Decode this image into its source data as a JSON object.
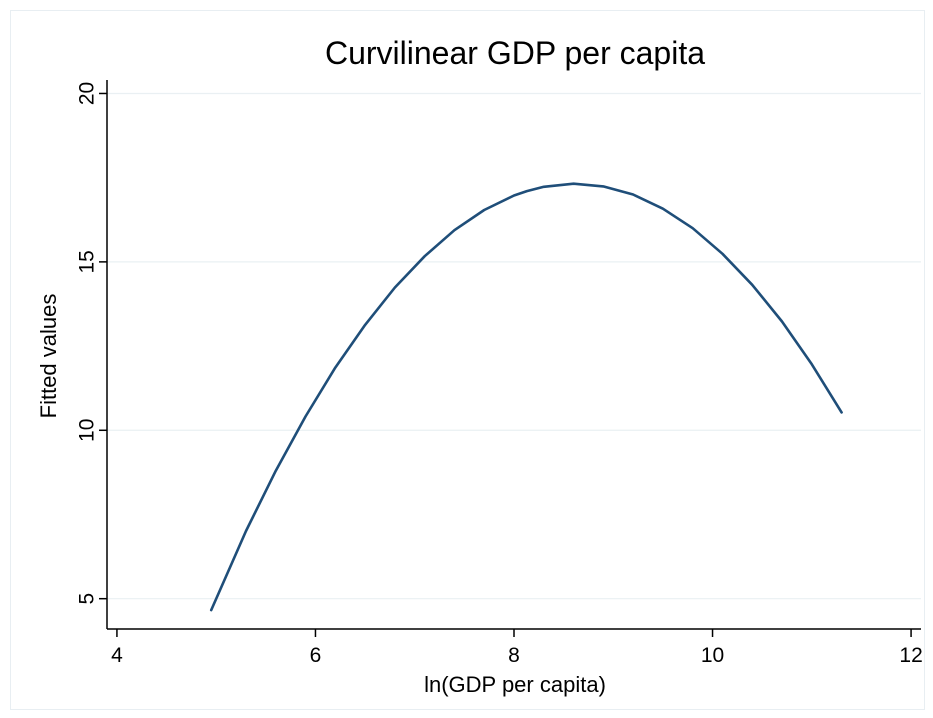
{
  "chart_data": {
    "type": "line",
    "title": "Curvilinear GDP per capita",
    "xlabel": "ln(GDP per capita)",
    "ylabel": "Fitted values",
    "xlim": [
      3.9,
      12.1
    ],
    "ylim": [
      4.1,
      20.4
    ],
    "x_ticks": [
      4,
      6,
      8,
      10,
      12
    ],
    "y_ticks": [
      5,
      10,
      15,
      20
    ],
    "grid": true,
    "series": [
      {
        "color": "#1f4e79",
        "x": [
          4.95,
          5.3,
          5.6,
          5.9,
          6.2,
          6.5,
          6.8,
          7.1,
          7.4,
          7.7,
          8.0,
          8.13,
          8.3,
          8.6,
          8.9,
          9.2,
          9.5,
          9.8,
          10.1,
          10.4,
          10.7,
          11.0,
          11.3
        ],
        "y": [
          4.66,
          7.01,
          8.8,
          10.41,
          11.86,
          13.13,
          14.24,
          15.17,
          15.94,
          16.54,
          16.97,
          17.1,
          17.23,
          17.32,
          17.24,
          17.0,
          16.58,
          16.0,
          15.24,
          14.32,
          13.23,
          11.96,
          10.53
        ]
      }
    ]
  }
}
